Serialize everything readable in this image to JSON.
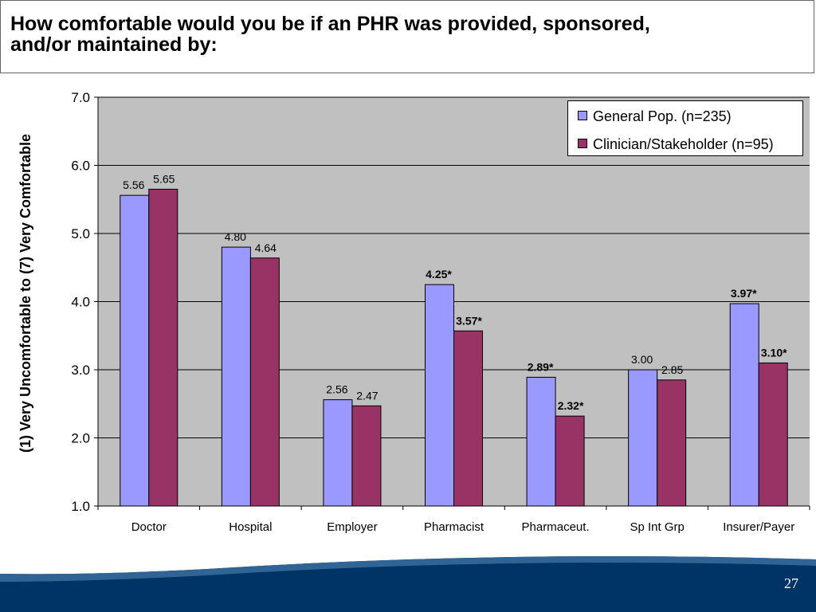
{
  "slide": {
    "title": "How comfortable would you be if an PHR was provided, sponsored,\nand/or maintained by:",
    "page_number": "27"
  },
  "colors": {
    "general_pop": "#9999ff",
    "clinician": "#993366",
    "plot_background": "#c0c0c0",
    "footer_dark": "#003366",
    "footer_light": "#2f6494"
  },
  "chart_data": {
    "type": "bar",
    "title": "",
    "xlabel": "",
    "ylabel": "(1) Very Uncomfortable to (7) Very Comfortable",
    "ylim": [
      1.0,
      7.0
    ],
    "yticks": [
      "1.0",
      "2.0",
      "3.0",
      "4.0",
      "5.0",
      "6.0",
      "7.0"
    ],
    "grid": true,
    "legend_position": "top-right",
    "categories": [
      "Doctor",
      "Hospital",
      "Employer",
      "Pharmacist",
      "Pharmaceut.",
      "Sp Int Grp",
      "Insurer/Payer"
    ],
    "series": [
      {
        "name": "General Pop. (n=235)",
        "values": [
          5.56,
          4.8,
          2.56,
          4.25,
          2.89,
          3.0,
          3.97
        ],
        "labels": [
          "5.56",
          "4.80",
          "2.56",
          "4.25*",
          "2.89*",
          "3.00",
          "3.97*"
        ],
        "label_bold": [
          false,
          false,
          false,
          true,
          true,
          false,
          true
        ]
      },
      {
        "name": "Clinician/Stakeholder (n=95)",
        "values": [
          5.65,
          4.64,
          2.47,
          3.57,
          2.32,
          2.85,
          3.1
        ],
        "labels": [
          "5.65",
          "4.64",
          "2.47",
          "3.57*",
          "2.32*",
          "2.85",
          "3.10*"
        ],
        "label_bold": [
          false,
          false,
          false,
          true,
          true,
          false,
          true
        ]
      }
    ]
  }
}
